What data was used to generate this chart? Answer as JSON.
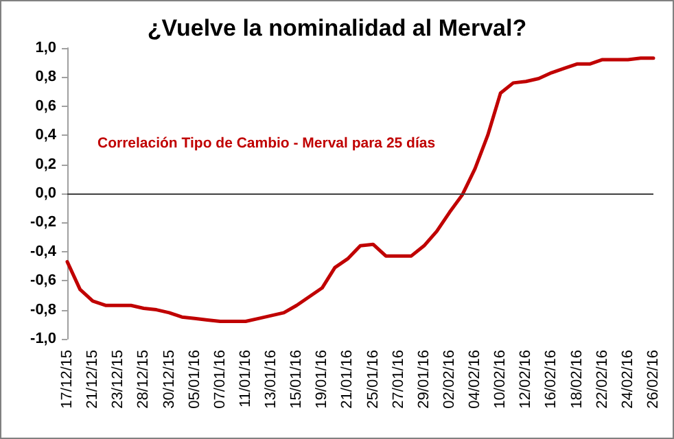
{
  "chart_data": {
    "type": "line",
    "title": "¿Vuelve la nominalidad al Merval?",
    "annotations": [
      "Correlación Tipo de Cambio - Merval para 25 días"
    ],
    "categories": [
      "17/12/15",
      null,
      "21/12/15",
      null,
      "23/12/15",
      null,
      "28/12/15",
      null,
      "30/12/15",
      null,
      "05/01/16",
      null,
      "07/01/16",
      null,
      "11/01/16",
      null,
      "13/01/16",
      null,
      "15/01/16",
      null,
      "19/01/16",
      null,
      "21/01/16",
      null,
      "25/01/16",
      null,
      "27/01/16",
      null,
      "29/01/16",
      null,
      "02/02/16",
      null,
      "04/02/16",
      null,
      "10/02/16",
      null,
      "12/02/16",
      null,
      "16/02/16",
      null,
      "18/02/16",
      null,
      "22/02/16",
      null,
      "24/02/16",
      null,
      "26/02/16"
    ],
    "series": [
      {
        "color": "#c00000",
        "values": [
          -0.47,
          -0.66,
          -0.74,
          -0.77,
          -0.77,
          -0.77,
          -0.79,
          -0.8,
          -0.82,
          -0.85,
          -0.86,
          -0.87,
          -0.88,
          -0.88,
          -0.88,
          -0.86,
          -0.84,
          -0.82,
          -0.77,
          -0.71,
          -0.65,
          -0.51,
          -0.45,
          -0.36,
          -0.35,
          -0.43,
          -0.43,
          -0.43,
          -0.36,
          -0.26,
          -0.13,
          -0.01,
          0.17,
          0.4,
          0.69,
          0.76,
          0.77,
          0.79,
          0.83,
          0.86,
          0.89,
          0.89,
          0.92,
          0.92,
          0.92,
          0.93,
          0.93
        ]
      }
    ],
    "ylim": [
      -1,
      1
    ],
    "yticks": [
      {
        "value": -1,
        "label": "-1,0"
      },
      {
        "value": -0.8,
        "label": "-0,8"
      },
      {
        "value": -0.6,
        "label": "-0,6"
      },
      {
        "value": -0.4,
        "label": "-0,4"
      },
      {
        "value": -0.2,
        "label": "-0,2"
      },
      {
        "value": 0,
        "label": "0,0"
      },
      {
        "value": 0.2,
        "label": "0,2"
      },
      {
        "value": 0.4,
        "label": "0,4"
      },
      {
        "value": 0.6,
        "label": "0,6"
      },
      {
        "value": 0.8,
        "label": "0,8"
      },
      {
        "value": 1,
        "label": "1,0"
      }
    ],
    "ref_lines": [
      {
        "axis": "y",
        "value": 0,
        "color": "#404040"
      }
    ],
    "marker": "none",
    "line_style": "solid"
  }
}
